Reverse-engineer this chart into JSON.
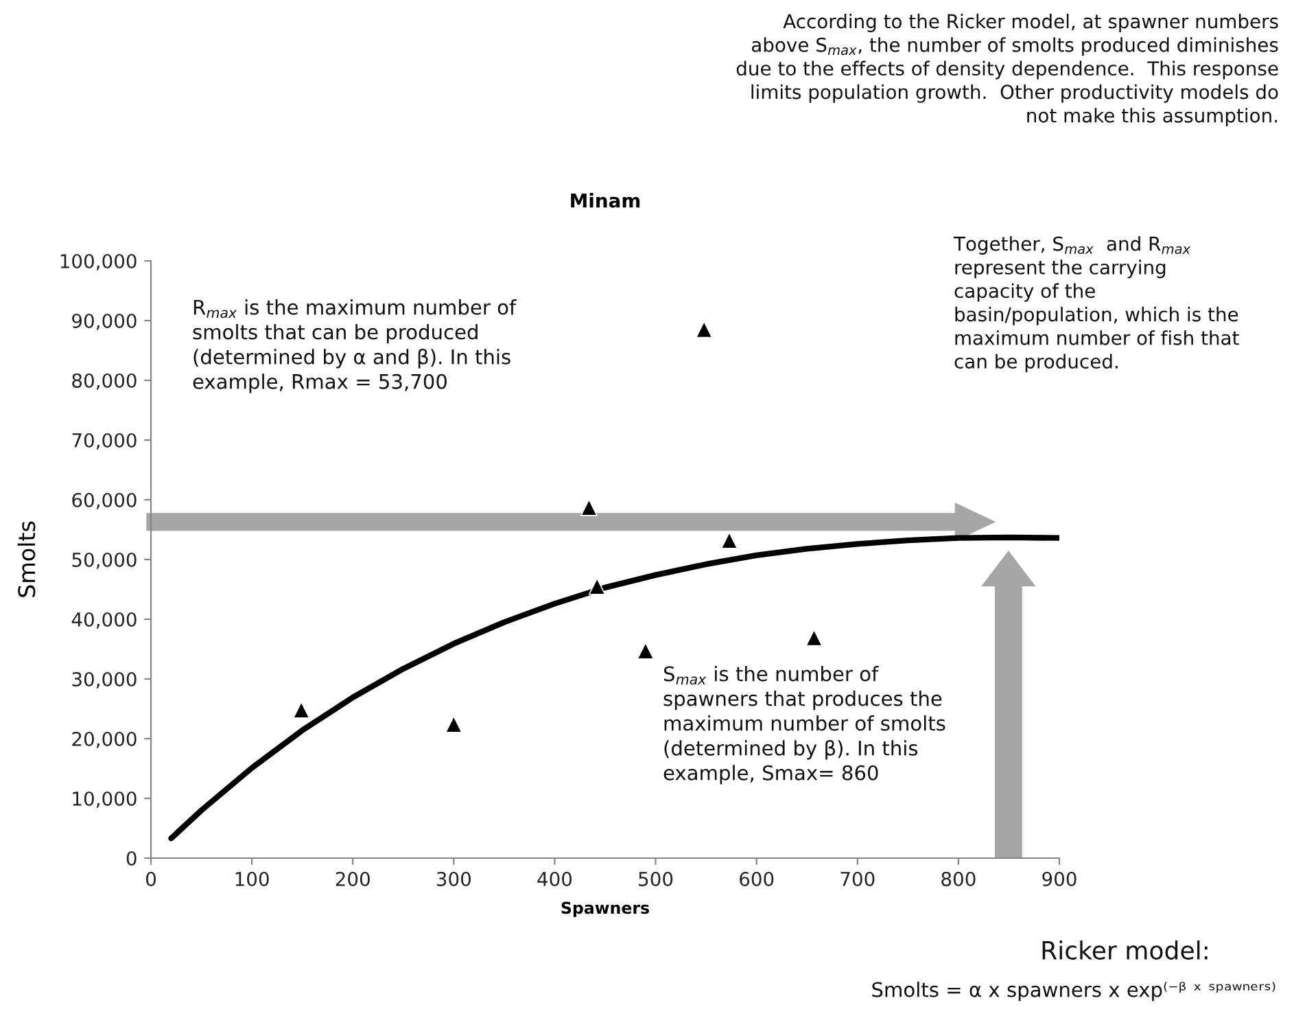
{
  "chart_data": {
    "type": "scatter",
    "title": "Minam",
    "xlabel": "Spawners",
    "ylabel": "Smolts",
    "xlim": [
      0,
      900
    ],
    "xticks": [
      0,
      100,
      200,
      300,
      400,
      500,
      600,
      700,
      800,
      900
    ],
    "ylim": [
      0,
      100000
    ],
    "yticks": [
      0,
      {
        "value": 10000,
        "label": "10,000"
      },
      {
        "value": 20000,
        "label": "20,000"
      },
      {
        "value": 30000,
        "label": "30,000"
      },
      {
        "value": 40000,
        "label": "40,000"
      },
      {
        "value": 50000,
        "label": "50,000"
      },
      {
        "value": 60000,
        "label": "60,000"
      },
      {
        "value": 70000,
        "label": "70,000"
      },
      {
        "value": 80000,
        "label": "80,000"
      },
      {
        "value": 90000,
        "label": "90,000"
      },
      {
        "value": 100000,
        "label": "100,000"
      }
    ],
    "grid": false,
    "legend": false,
    "series": [
      {
        "type": "scatter",
        "marker": "triangle",
        "color": "#000000",
        "x": [
          149,
          300,
          434,
          442,
          490,
          548,
          573,
          657
        ],
        "values": [
          24800,
          22400,
          58700,
          45500,
          34700,
          88500,
          53200,
          36900
        ]
      },
      {
        "type": "line",
        "marker": "none",
        "line_style": "solid",
        "color": "#000000",
        "x": [
          20,
          50,
          100,
          150,
          200,
          250,
          300,
          350,
          400,
          450,
          500,
          550,
          600,
          650,
          700,
          750,
          800,
          850,
          900
        ],
        "values": [
          3300,
          8000,
          15100,
          21400,
          26900,
          31700,
          35900,
          39500,
          42600,
          45300,
          47400,
          49200,
          50700,
          51800,
          52600,
          53200,
          53600,
          53700,
          53600
        ]
      }
    ],
    "annotations": [
      "According to the Ricker model, at spawner numbers\nabove S$_{max}$, the number of smolts produced diminishes\ndue to the effects of density dependence.  This response\nlimits population growth.  Other productivity models do\nnot make this assumption.",
      "R$_{max}$ is the maximum number of\nsmolts that can be produced\n(determined by α and β). In this\nexample, Rmax = 53,700",
      "Together, S$_{max}$  and R$_{max}$\nrepresent the carrying\ncapacity of the\nbasin/population, which is the\nmaximum number of fish that\ncan be produced.",
      "S$_{max}$ is the number of\nspawners that produces the\nmaximum number of smolts\n(determined by β). In this\nexample, Smax= 860",
      "Ricker model:",
      "Smolts = α x spawners x exp⁽⁻ᵝ ˣ ˢᵖᵃʷⁿᵉʳˢ⁾"
    ]
  }
}
